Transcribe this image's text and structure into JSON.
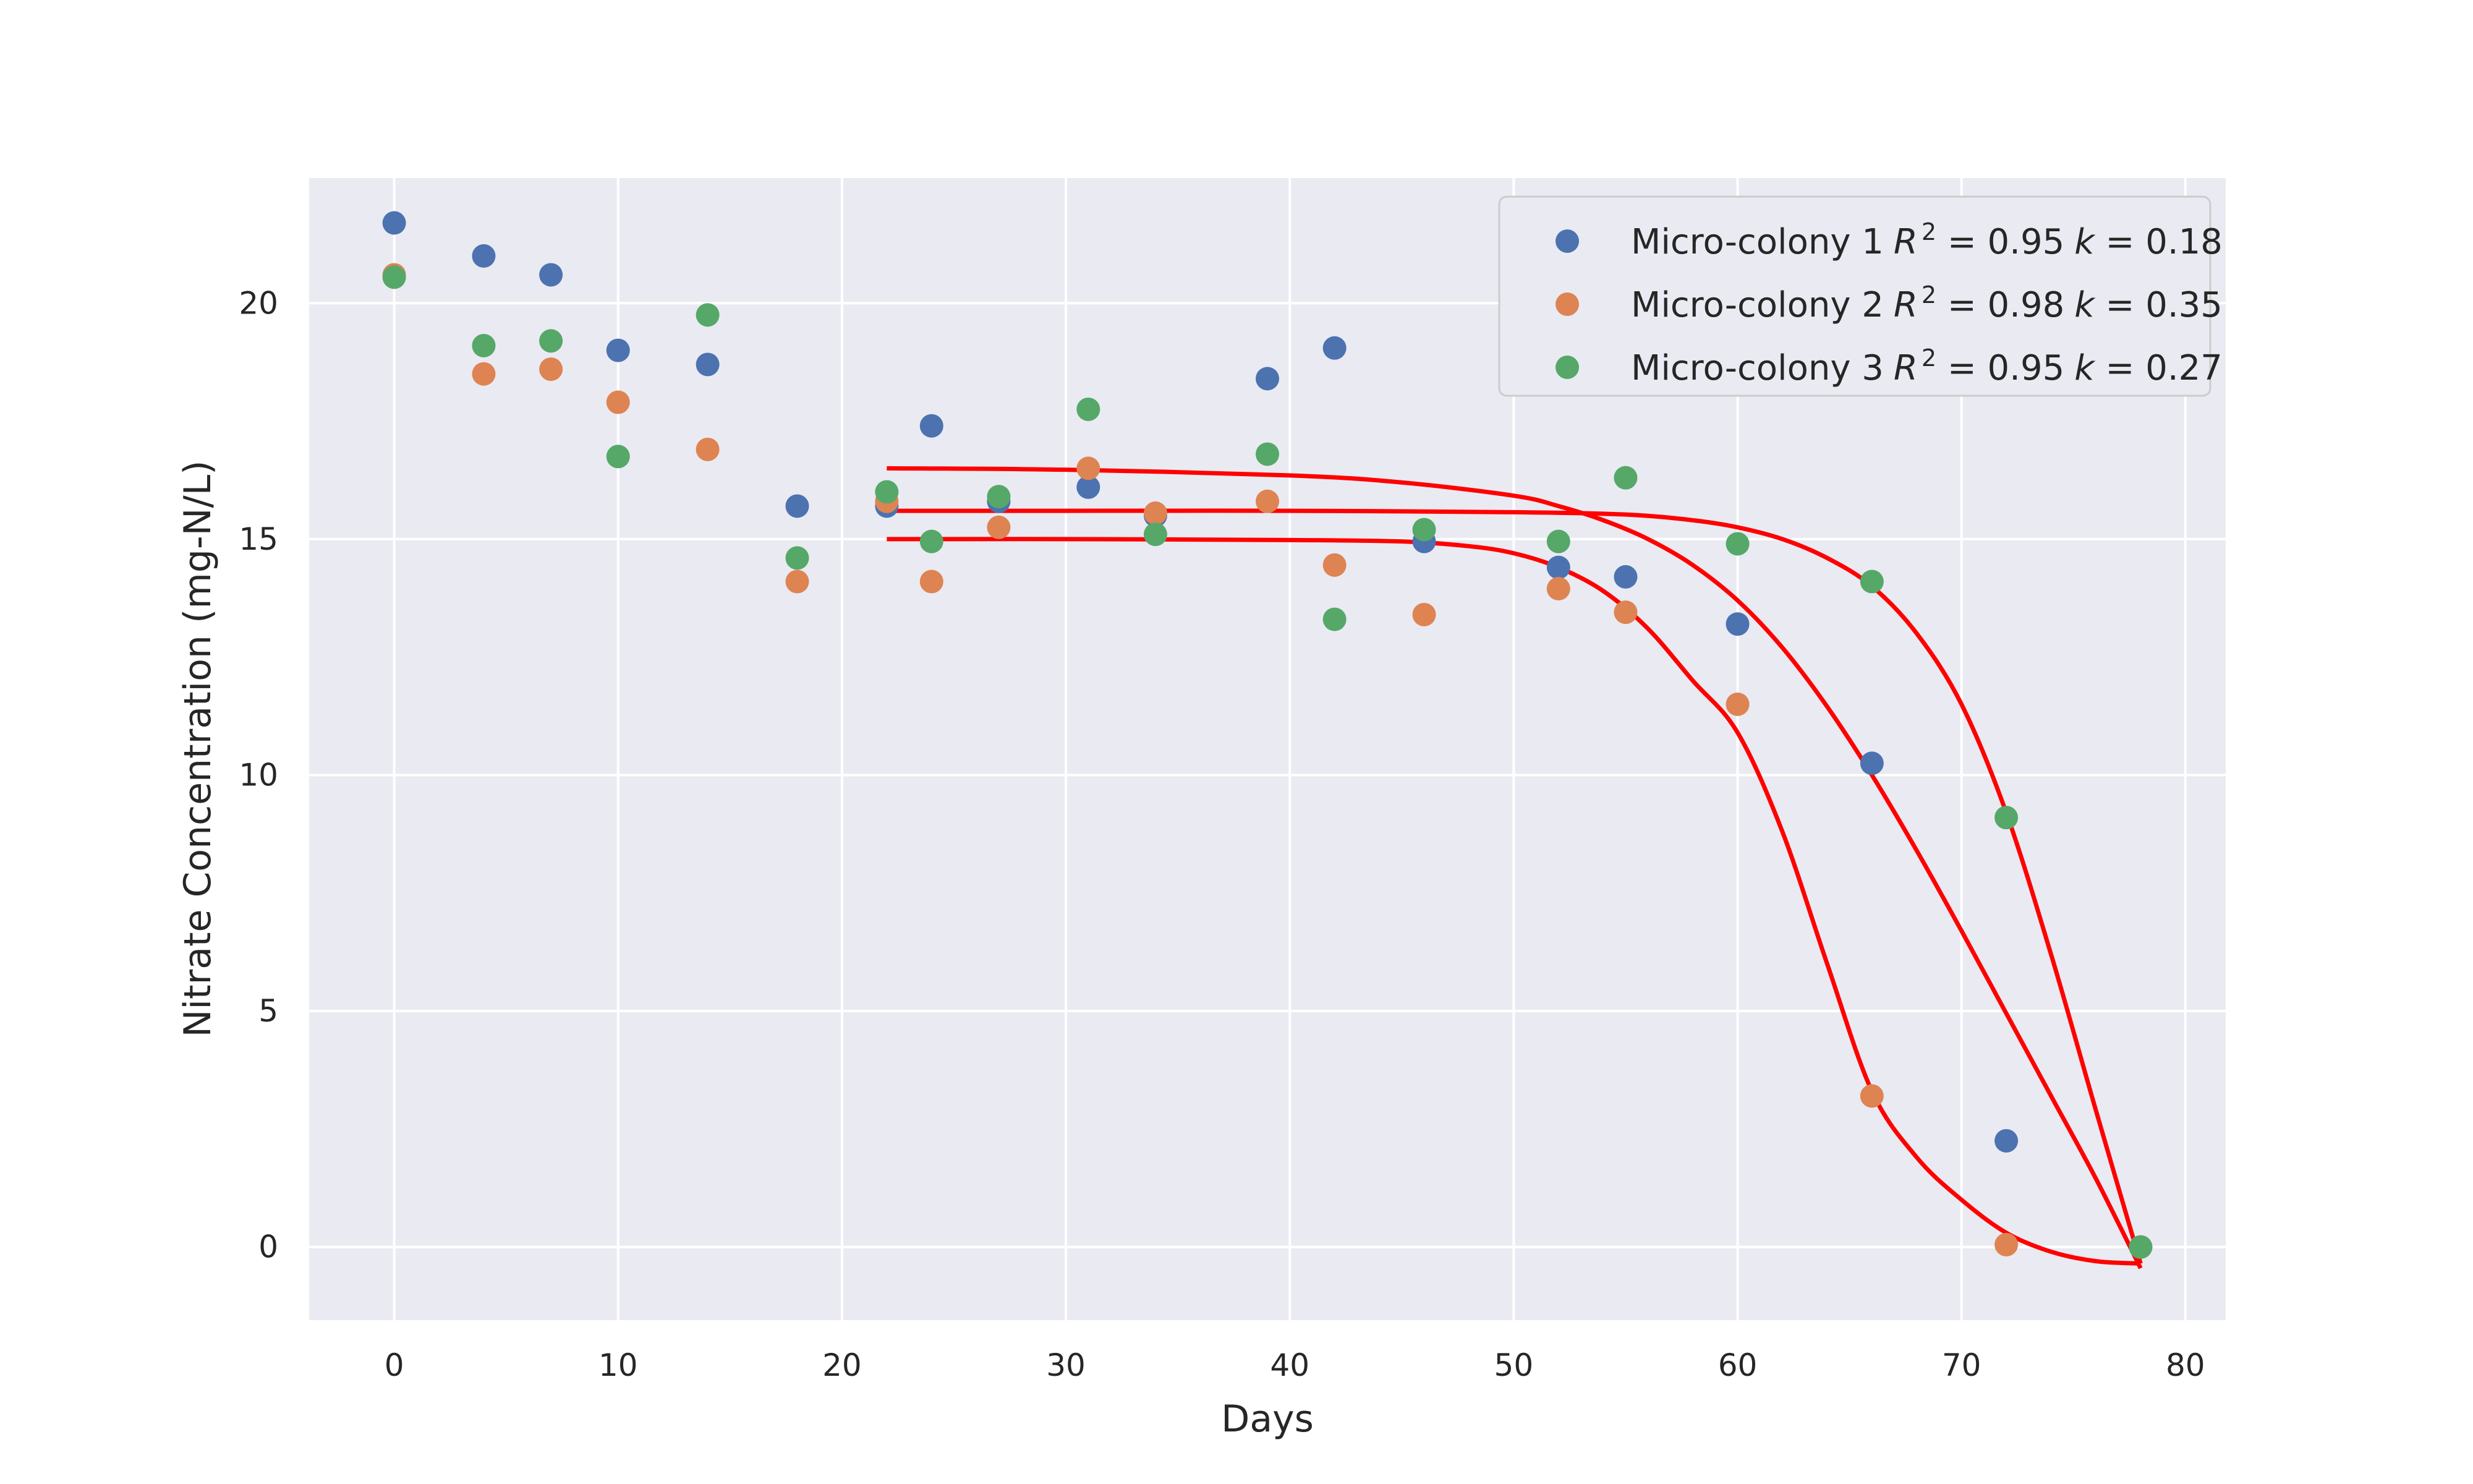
{
  "chart_data": {
    "type": "scatter",
    "xlabel": "Days",
    "ylabel": "Nitrate Concentration (mg-N/L)",
    "xlim": [
      -3.8,
      81.8
    ],
    "ylim": [
      -1.55,
      22.65
    ],
    "xticks": [
      0,
      10,
      20,
      30,
      40,
      50,
      60,
      70,
      80
    ],
    "yticks": [
      0,
      5,
      10,
      15,
      20
    ],
    "grid": true,
    "legend_position": "upper right",
    "colors": {
      "background": "#EAEAF2",
      "grid": "#FFFFFF",
      "fit": "#FF0000",
      "series": [
        "#4C72B0",
        "#DD8452",
        "#55A868"
      ]
    },
    "series": [
      {
        "name": "Micro-colony 1",
        "legend": {
          "label": "Micro-colony 1",
          "r2_label": "R",
          "r2_exp": "2",
          "r2_value": " = 0.95",
          "k_label": "k",
          "k_value": " = 0.18"
        },
        "color": "#4C72B0",
        "x": [
          0,
          4,
          7,
          10,
          14,
          18,
          22,
          24,
          27,
          31,
          34,
          39,
          42,
          46,
          52,
          55,
          60,
          66,
          72,
          78
        ],
        "y": [
          21.7,
          21.0,
          20.6,
          19.0,
          18.7,
          15.7,
          15.7,
          17.4,
          15.8,
          16.1,
          15.5,
          18.4,
          19.05,
          14.95,
          14.4,
          14.2,
          13.2,
          10.25,
          2.25,
          0.0
        ],
        "fit": {
          "x": [
            22,
            30,
            40,
            45,
            50,
            52,
            54,
            56,
            58,
            60,
            62,
            64,
            66,
            68,
            70,
            72,
            74,
            76,
            78
          ],
          "y": [
            16.5,
            16.47,
            16.35,
            16.2,
            15.92,
            15.7,
            15.4,
            15.0,
            14.45,
            13.7,
            12.7,
            11.45,
            10.0,
            8.4,
            6.7,
            4.95,
            3.2,
            1.45,
            -0.45
          ]
        }
      },
      {
        "name": "Micro-colony 2",
        "legend": {
          "label": "Micro-colony 2",
          "r2_label": "R",
          "r2_exp": "2",
          "r2_value": " = 0.98",
          "k_label": "k",
          "k_value": " = 0.35"
        },
        "color": "#DD8452",
        "x": [
          0,
          4,
          7,
          10,
          14,
          18,
          22,
          24,
          27,
          31,
          34,
          39,
          42,
          46,
          52,
          55,
          60,
          66,
          72,
          78
        ],
        "y": [
          20.6,
          18.5,
          18.6,
          17.9,
          16.9,
          14.1,
          15.8,
          14.1,
          15.25,
          16.5,
          15.55,
          15.8,
          14.45,
          13.4,
          13.95,
          13.45,
          11.5,
          3.2,
          0.05,
          0.0
        ],
        "fit": {
          "x": [
            22,
            30,
            40,
            45,
            48,
            50,
            52,
            54,
            56,
            58,
            60,
            62,
            64,
            66,
            68,
            70,
            72,
            74,
            76,
            78
          ],
          "y": [
            15.0,
            15.0,
            14.98,
            14.95,
            14.85,
            14.7,
            14.4,
            13.9,
            13.1,
            12.0,
            10.9,
            8.8,
            6.0,
            3.3,
            1.9,
            1.0,
            0.3,
            -0.1,
            -0.3,
            -0.35
          ]
        }
      },
      {
        "name": "Micro-colony 3",
        "legend": {
          "label": "Micro-colony 3",
          "r2_label": "R",
          "r2_exp": "2",
          "r2_value": " = 0.95",
          "k_label": "k",
          "k_value": " = 0.27"
        },
        "color": "#55A868",
        "x": [
          0,
          4,
          7,
          10,
          14,
          18,
          22,
          24,
          27,
          31,
          34,
          39,
          42,
          46,
          52,
          55,
          60,
          66,
          72,
          78
        ],
        "y": [
          20.55,
          19.1,
          19.2,
          16.75,
          19.75,
          14.6,
          16.0,
          14.95,
          15.9,
          17.75,
          15.1,
          16.8,
          13.3,
          15.2,
          14.95,
          16.3,
          14.9,
          14.1,
          9.1,
          0.0
        ],
        "fit": {
          "x": [
            22,
            30,
            40,
            50,
            55,
            58,
            60,
            62,
            64,
            66,
            68,
            70,
            72,
            74,
            76,
            78
          ],
          "y": [
            15.6,
            15.6,
            15.6,
            15.57,
            15.52,
            15.4,
            15.25,
            15.0,
            14.6,
            14.0,
            13.0,
            11.5,
            9.2,
            6.2,
            2.9,
            -0.35
          ]
        }
      }
    ]
  }
}
